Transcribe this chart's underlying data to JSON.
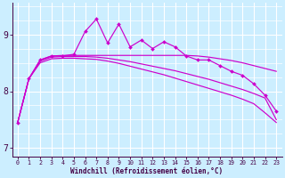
{
  "xlabel": "Windchill (Refroidissement éolien,°C)",
  "background_color": "#cceeff",
  "line_color": "#cc00cc",
  "x_ticks": [
    0,
    1,
    2,
    3,
    4,
    5,
    6,
    7,
    8,
    9,
    10,
    11,
    12,
    13,
    14,
    15,
    16,
    17,
    18,
    19,
    20,
    21,
    22,
    23
  ],
  "ylim": [
    6.85,
    9.55
  ],
  "yticks": [
    7,
    8,
    9
  ],
  "curve_jagged": [
    7.45,
    8.22,
    8.55,
    8.62,
    8.62,
    8.65,
    9.05,
    9.27,
    8.85,
    9.18,
    8.78,
    8.9,
    8.75,
    8.87,
    8.78,
    8.62,
    8.55,
    8.55,
    8.45,
    8.35,
    8.28,
    8.13,
    7.93,
    7.65
  ],
  "curve_smooth_high": [
    7.45,
    8.22,
    8.55,
    8.62,
    8.63,
    8.63,
    8.63,
    8.63,
    8.63,
    8.63,
    8.63,
    8.63,
    8.63,
    8.63,
    8.63,
    8.63,
    8.62,
    8.6,
    8.57,
    8.54,
    8.5,
    8.45,
    8.4,
    8.35
  ],
  "curve_smooth_mid": [
    7.45,
    8.22,
    8.53,
    8.6,
    8.61,
    8.61,
    8.61,
    8.6,
    8.58,
    8.55,
    8.52,
    8.48,
    8.44,
    8.4,
    8.36,
    8.31,
    8.26,
    8.21,
    8.15,
    8.09,
    8.03,
    7.96,
    7.88,
    7.5
  ],
  "curve_smooth_low": [
    7.45,
    8.22,
    8.5,
    8.57,
    8.58,
    8.58,
    8.57,
    8.56,
    8.53,
    8.49,
    8.44,
    8.39,
    8.34,
    8.29,
    8.23,
    8.17,
    8.11,
    8.05,
    7.99,
    7.93,
    7.86,
    7.78,
    7.62,
    7.45
  ]
}
